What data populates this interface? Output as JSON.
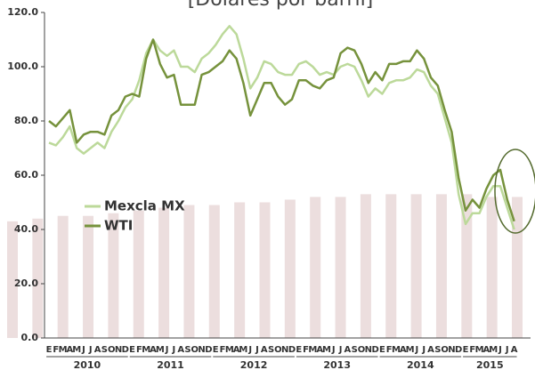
{
  "chart_data": {
    "type": "line",
    "title": "[Dólares por barril]",
    "categories": [
      "E",
      "F",
      "M",
      "A",
      "M",
      "J",
      "J",
      "A",
      "S",
      "O",
      "N",
      "D",
      "E",
      "F",
      "M",
      "A",
      "M",
      "J",
      "J",
      "A",
      "S",
      "O",
      "N",
      "D",
      "E",
      "F",
      "M",
      "A",
      "M",
      "J",
      "J",
      "A",
      "S",
      "O",
      "N",
      "D",
      "E",
      "F",
      "M",
      "A",
      "M",
      "J",
      "J",
      "A",
      "S",
      "O",
      "N",
      "D",
      "E",
      "F",
      "M",
      "A",
      "M",
      "J",
      "J",
      "A",
      "S",
      "O",
      "N",
      "D",
      "E",
      "F",
      "M",
      "A",
      "M",
      "J",
      "J",
      "A"
    ],
    "years": [
      "2010",
      "2011",
      "2012",
      "2013",
      "2014",
      "2015"
    ],
    "series": [
      {
        "name": "Mexcla MX",
        "color": "#bcd99a",
        "values": [
          72,
          71,
          74,
          78,
          70,
          68,
          70,
          72,
          70,
          76,
          80,
          85,
          88,
          95,
          105,
          110,
          106,
          104,
          106,
          100,
          100,
          98,
          103,
          105,
          108,
          112,
          115,
          112,
          103,
          92,
          96,
          102,
          101,
          98,
          97,
          97,
          101,
          102,
          100,
          97,
          98,
          97,
          100,
          101,
          100,
          95,
          89,
          92,
          90,
          94,
          95,
          95,
          96,
          99,
          98,
          93,
          90,
          81,
          72,
          53,
          42,
          46,
          46,
          52,
          56,
          56,
          48,
          40
        ]
      },
      {
        "name": "WTI",
        "color": "#76923c",
        "values": [
          80,
          78,
          81,
          84,
          72,
          75,
          76,
          76,
          75,
          82,
          84,
          89,
          90,
          89,
          103,
          110,
          101,
          96,
          97,
          86,
          86,
          86,
          97,
          98,
          100,
          102,
          106,
          103,
          94,
          82,
          88,
          94,
          94,
          89,
          86,
          88,
          95,
          95,
          93,
          92,
          95,
          96,
          105,
          107,
          106,
          101,
          94,
          98,
          95,
          101,
          101,
          102,
          102,
          106,
          103,
          96,
          93,
          84,
          76,
          59,
          47,
          51,
          48,
          55,
          60,
          62,
          51,
          43
        ]
      }
    ],
    "background_bars": {
      "color": "#ecdede",
      "values": [
        43,
        44,
        45,
        45,
        46,
        47,
        48,
        49,
        49,
        50,
        50,
        51,
        52,
        52,
        53,
        53,
        53,
        53,
        53,
        52,
        52
      ]
    },
    "ylim": [
      0,
      120
    ],
    "yticks": [
      {
        "value": 0,
        "label": "0.0"
      },
      {
        "value": 20,
        "label": "20.0"
      },
      {
        "value": 40,
        "label": "40.0"
      },
      {
        "value": 60,
        "label": "60.0"
      },
      {
        "value": 80,
        "label": "80.0"
      },
      {
        "value": 100,
        "label": "100.0"
      },
      {
        "value": 120,
        "label": "120.0"
      }
    ]
  }
}
